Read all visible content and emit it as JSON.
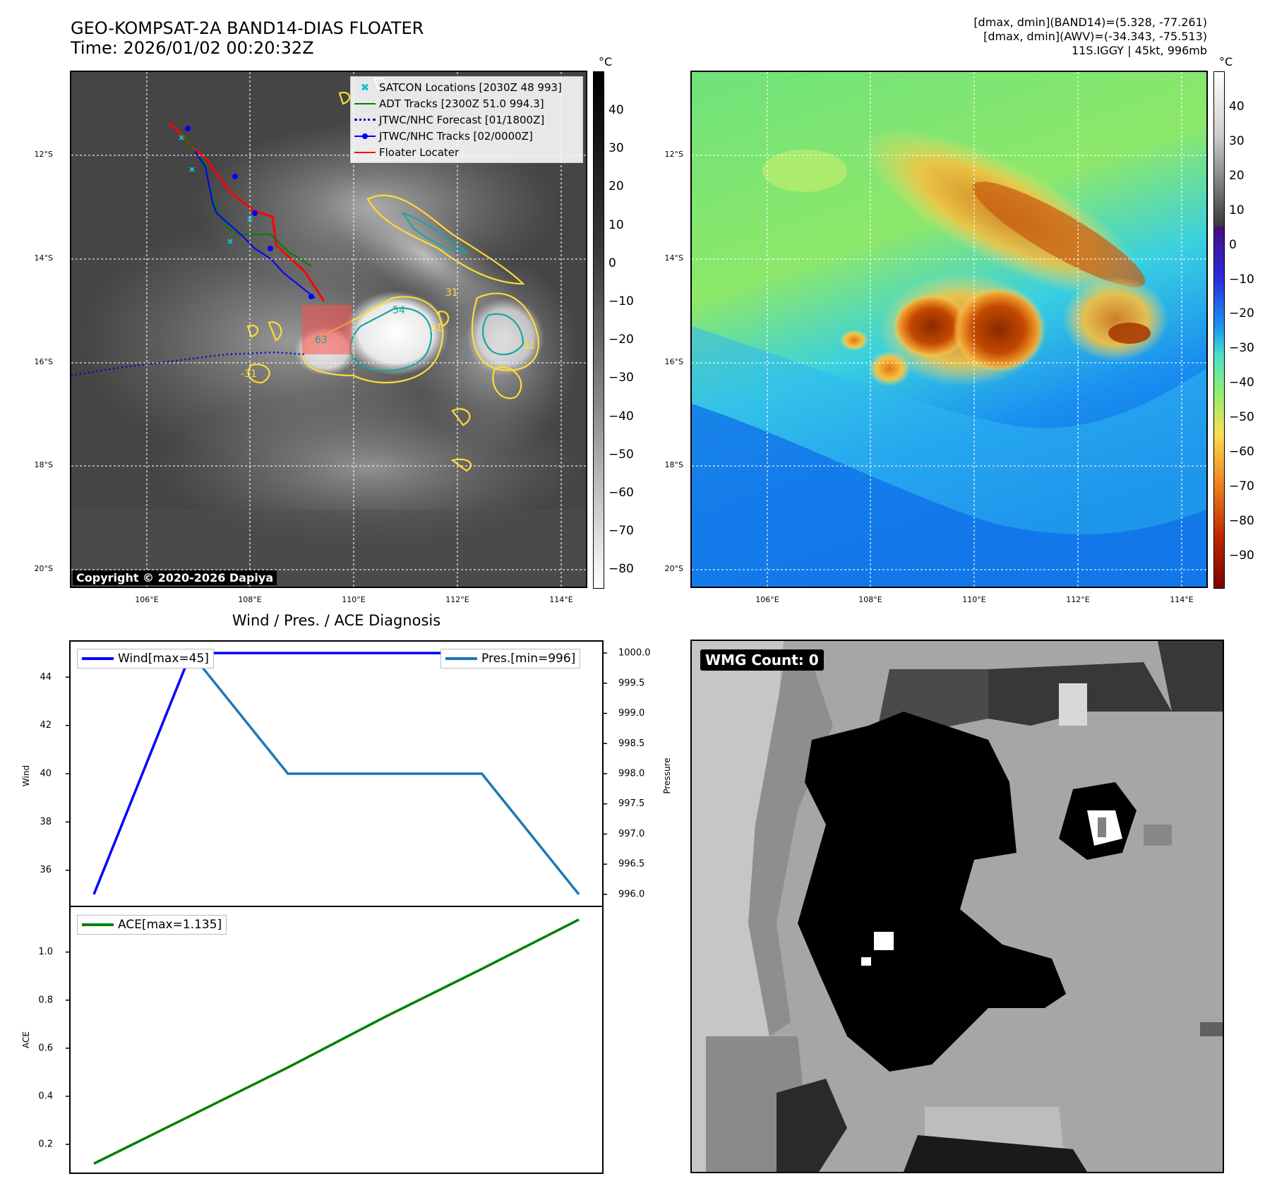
{
  "header": {
    "title_line1": "GEO-KOMPSAT-2A BAND14-DIAS FLOATER",
    "title_line2": "Time: 2026/01/02 00:20:32Z",
    "info_line1": "[dmax, dmin](BAND14)=(5.328, -77.261)",
    "info_line2": "[dmax, dmin](AWV)=(-34.343, -75.513)",
    "info_line3": "11S.IGGY | 45kt, 996mb"
  },
  "maps": {
    "lat_labels": [
      "12°S",
      "14°S",
      "16°S",
      "18°S",
      "20°S"
    ],
    "lon_labels": [
      "106°E",
      "108°E",
      "110°E",
      "112°E",
      "114°E"
    ],
    "copyright": "Copyright © 2020-2026 Dapiya",
    "colorbar_unit": "°C",
    "left_colorbar_ticks": [
      "40",
      "30",
      "20",
      "10",
      "0",
      "−10",
      "−20",
      "−30",
      "−40",
      "−50",
      "−60",
      "−70",
      "−80"
    ],
    "right_colorbar_ticks": [
      "40",
      "30",
      "20",
      "10",
      "0",
      "−10",
      "−20",
      "−30",
      "−40",
      "−50",
      "−60",
      "−70",
      "−80",
      "−90"
    ],
    "legend": [
      {
        "label": "SATCON Locations [2030Z 48 993]",
        "color": "#17becf",
        "symbol": "x"
      },
      {
        "label": "ADT Tracks [2300Z 51.0 994.3]",
        "color": "#008000",
        "symbol": "line"
      },
      {
        "label": "JTWC/NHC Forecast [01/1800Z]",
        "color": "#0000cc",
        "symbol": "dotted"
      },
      {
        "label": "JTWC/NHC Tracks [02/0000Z]",
        "color": "#0000ff",
        "symbol": "line-dot"
      },
      {
        "label": "Floater Locater",
        "color": "#ff0000",
        "symbol": "line"
      }
    ],
    "contour_labels": [
      "54",
      "31",
      "31",
      "31",
      "63",
      "-31"
    ]
  },
  "diagnosis": {
    "title": "Wind / Pres. / ACE Diagnosis",
    "wind_legend": "Wind[max=45]",
    "pres_legend": "Pres.[min=996]",
    "ace_legend": "ACE[max=1.135]",
    "wind_axis_label": "Wind",
    "pres_axis_label": "Pressure",
    "ace_axis_label": "ACE",
    "wind_ticks": [
      "44",
      "42",
      "40",
      "38",
      "36"
    ],
    "pres_ticks": [
      "1000.0",
      "999.5",
      "999.0",
      "998.5",
      "998.0",
      "997.5",
      "997.0",
      "996.5",
      "996.0"
    ],
    "ace_ticks": [
      "1.0",
      "0.8",
      "0.6",
      "0.4",
      "0.2"
    ],
    "colors": {
      "wind": "#0000ff",
      "pres": "#1f77b4",
      "ace": "#008000"
    }
  },
  "wmg": {
    "label": "WMG Count: 0"
  },
  "chart_data": [
    {
      "type": "line",
      "title": "Wind / Pres. / ACE Diagnosis",
      "x": [
        0,
        1,
        2,
        3,
        4,
        5
      ],
      "series": [
        {
          "name": "Wind[max=45]",
          "axis": "left",
          "values": [
            35,
            45,
            45,
            45,
            45,
            45
          ]
        },
        {
          "name": "Pres.[min=996]",
          "axis": "right",
          "values": [
            1000,
            1000,
            998,
            998,
            998,
            996
          ]
        }
      ],
      "ylabel": "Wind",
      "ylim": [
        34.5,
        45.5
      ],
      "y2label": "Pressure",
      "y2lim": [
        995.8,
        1000.2
      ],
      "legend": "top"
    },
    {
      "type": "line",
      "x": [
        0,
        1,
        2,
        3,
        4,
        5
      ],
      "series": [
        {
          "name": "ACE[max=1.135]",
          "values": [
            0.12,
            0.32,
            0.52,
            0.73,
            0.93,
            1.135
          ]
        }
      ],
      "ylabel": "ACE",
      "ylim": [
        0.08,
        1.19
      ],
      "legend": "top-left"
    }
  ]
}
